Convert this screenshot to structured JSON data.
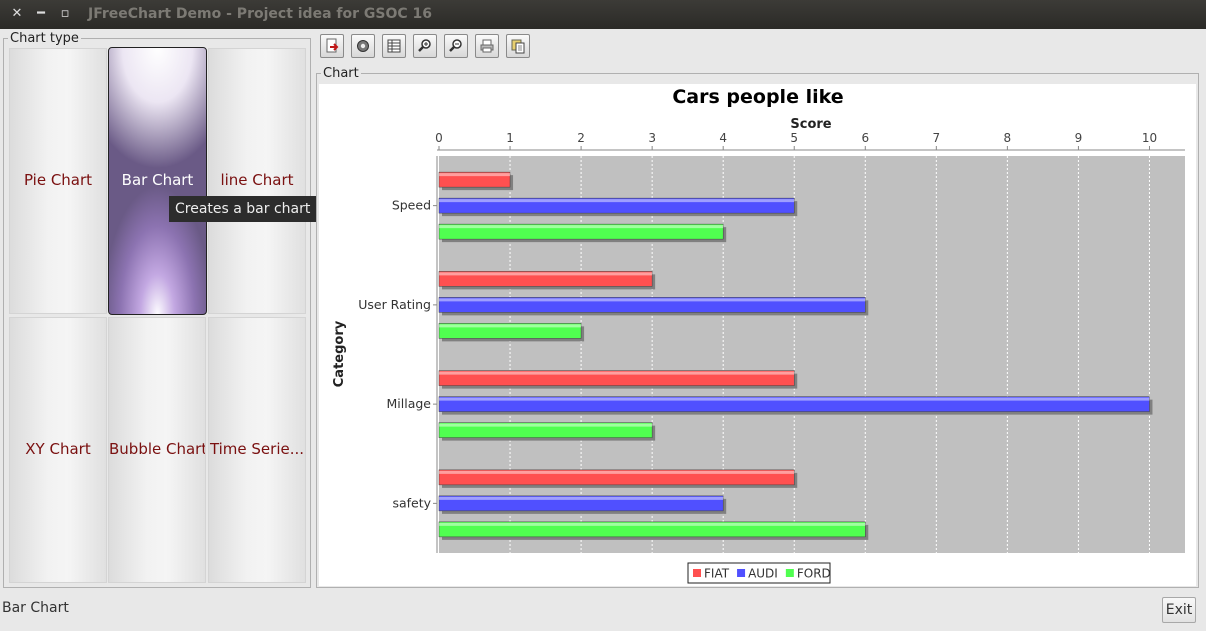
{
  "window": {
    "title": "JFreeChart Demo - Project idea for GSOC 16"
  },
  "chart_type_panel": {
    "legend": "Chart type",
    "buttons": [
      {
        "label": "Pie Chart",
        "selected": false
      },
      {
        "label": "Bar Chart",
        "selected": true
      },
      {
        "label": "line Chart",
        "selected": false
      },
      {
        "label": "XY Chart",
        "selected": false
      },
      {
        "label": "Bubble Chart",
        "selected": false
      },
      {
        "label": "Time Serie...",
        "selected": false
      }
    ],
    "tooltip": "Creates a bar chart"
  },
  "toolbar": {
    "icons": [
      "export-icon",
      "settings-icon",
      "table-icon",
      "zoom-in-icon",
      "zoom-out-icon",
      "print-icon",
      "copy-icon"
    ]
  },
  "chart_panel": {
    "legend": "Chart"
  },
  "colors": {
    "FIAT": "#ff5050",
    "AUDI": "#5050ff",
    "FORD": "#50ff50",
    "plot_background": "#c0c0c0"
  },
  "chart_data": {
    "type": "bar",
    "orientation": "horizontal",
    "title": "Cars people like",
    "xlabel": "Score",
    "ylabel": "Category",
    "categories": [
      "Speed",
      "User Rating",
      "Millage",
      "safety"
    ],
    "series": [
      {
        "name": "FIAT",
        "values": [
          1,
          3,
          5,
          5
        ]
      },
      {
        "name": "AUDI",
        "values": [
          5,
          6,
          10,
          4
        ]
      },
      {
        "name": "FORD",
        "values": [
          4,
          2,
          3,
          6
        ]
      }
    ],
    "xlim": [
      0,
      10.5
    ],
    "xticks": [
      "0",
      "1",
      "2",
      "3",
      "4",
      "5",
      "6",
      "7",
      "8",
      "9",
      "10"
    ],
    "value_axis_position": "top",
    "grid": true,
    "legend_position": "bottom"
  },
  "status": {
    "text": "Bar Chart",
    "exit_label": "Exit"
  }
}
